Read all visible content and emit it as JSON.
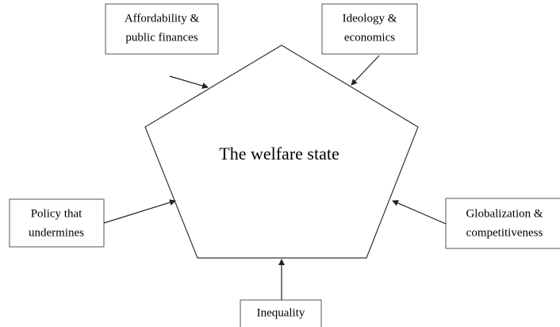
{
  "center": {
    "label": "The welfare state"
  },
  "nodes": [
    {
      "lines": [
        "Affordability &",
        "public finances"
      ]
    },
    {
      "lines": [
        "Ideology &",
        "economics"
      ]
    },
    {
      "lines": [
        "Policy that",
        "undermines"
      ]
    },
    {
      "lines": [
        "Globalization &",
        "competitiveness"
      ]
    },
    {
      "lines": [
        "Inequality"
      ]
    }
  ]
}
